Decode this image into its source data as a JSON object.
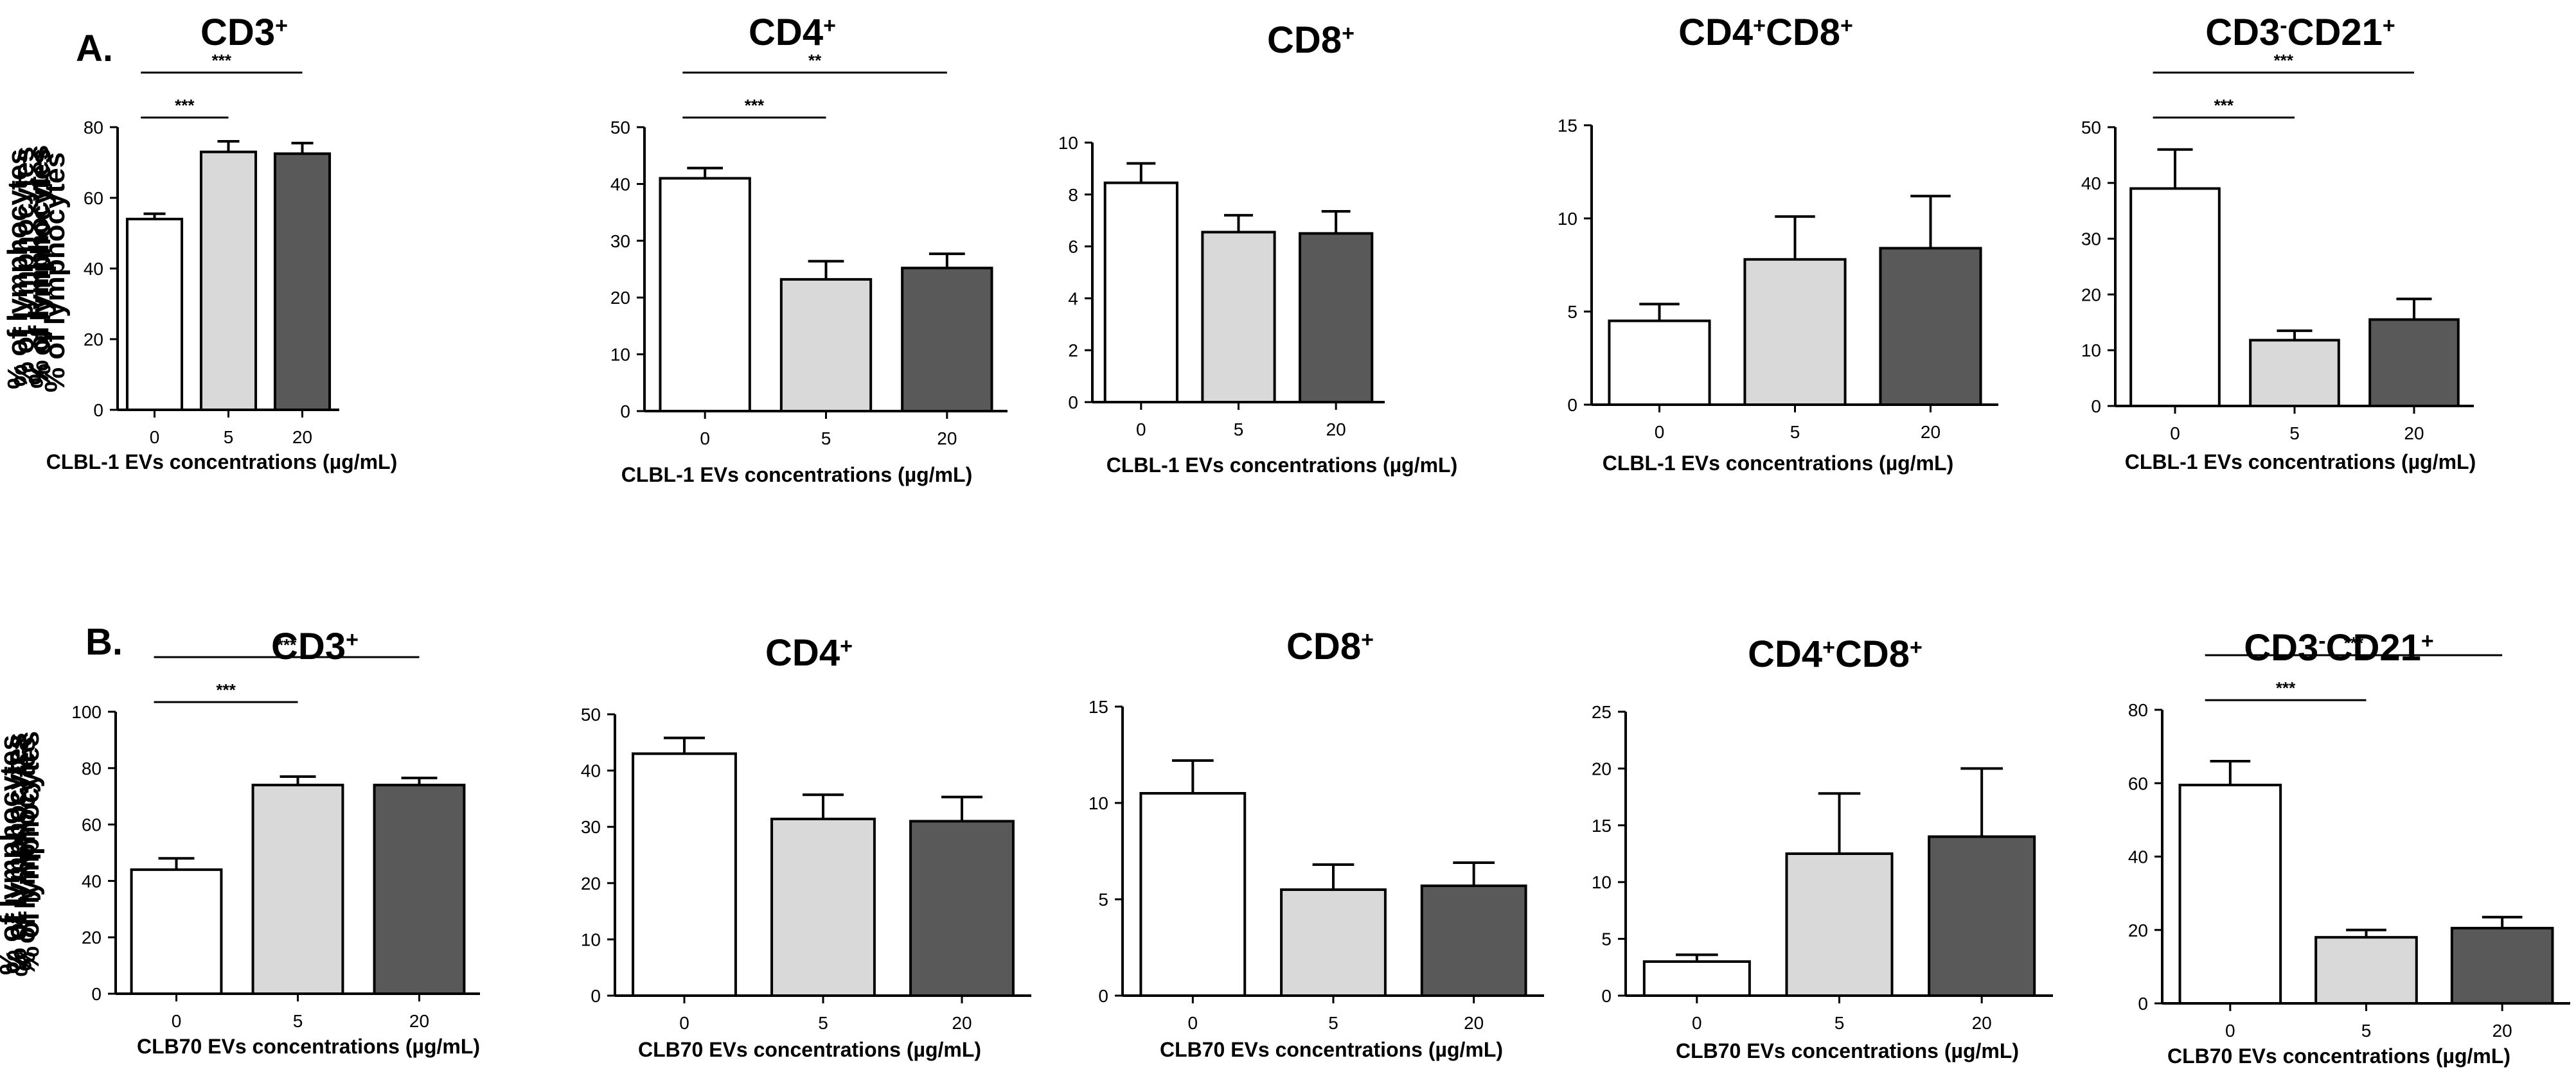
{
  "panels": {
    "A": {
      "label": "A.",
      "xlabel": "CLBL-1 EVs concentrations (µg/mL)"
    },
    "B": {
      "label": "B.",
      "xlabel": "CLB70 EVs concentrations (µg/mL)"
    }
  },
  "ylabel": "% of lymphocytes",
  "categories": [
    "0",
    "5",
    "20"
  ],
  "bar_colors": [
    "#ffffff",
    "#d9d9d9",
    "#595959"
  ],
  "chart_data": [
    {
      "type": "bar",
      "panel": "A",
      "title": "CD3⁺",
      "title_parts": [
        {
          "t": "CD3"
        },
        {
          "t": "+",
          "sup": true
        }
      ],
      "xlabel": "CLBL-1 EVs concentrations (µg/mL)",
      "ylabel": "% of lymphocytes",
      "categories": [
        "0",
        "5",
        "20"
      ],
      "values": [
        54,
        73,
        72.5
      ],
      "errors": [
        1.5,
        3,
        3
      ],
      "ylim": [
        0,
        80
      ],
      "yticks": [
        0,
        20,
        40,
        60,
        80
      ],
      "significance": [
        {
          "from": 0,
          "to": 1,
          "label": "***"
        },
        {
          "from": 0,
          "to": 2,
          "label": "***"
        }
      ]
    },
    {
      "type": "bar",
      "panel": "A",
      "title": "CD4⁺",
      "title_parts": [
        {
          "t": "CD4"
        },
        {
          "t": "+",
          "sup": true
        }
      ],
      "xlabel": "CLBL-1 EVs concentrations (µg/mL)",
      "ylabel": "% of lymphocytes",
      "categories": [
        "0",
        "5",
        "20"
      ],
      "values": [
        41,
        23.2,
        25.2
      ],
      "errors": [
        1.8,
        3.2,
        2.5
      ],
      "ylim": [
        0,
        50
      ],
      "yticks": [
        0,
        10,
        20,
        30,
        40,
        50
      ],
      "significance": [
        {
          "from": 0,
          "to": 1,
          "label": "***"
        },
        {
          "from": 0,
          "to": 2,
          "label": "**"
        }
      ]
    },
    {
      "type": "bar",
      "panel": "A",
      "title": "CD8⁺",
      "title_parts": [
        {
          "t": "CD8"
        },
        {
          "t": "+",
          "sup": true
        }
      ],
      "xlabel": "CLBL-1 EVs concentrations (µg/mL)",
      "ylabel": "% of lymphocytes",
      "categories": [
        "0",
        "5",
        "20"
      ],
      "values": [
        8.45,
        6.55,
        6.5
      ],
      "errors": [
        0.75,
        0.65,
        0.85
      ],
      "ylim": [
        0,
        10
      ],
      "yticks": [
        0,
        2,
        4,
        6,
        8,
        10
      ],
      "significance": []
    },
    {
      "type": "bar",
      "panel": "A",
      "title": "CD4⁺CD8⁺",
      "title_parts": [
        {
          "t": "CD4"
        },
        {
          "t": "+",
          "sup": true
        },
        {
          "t": "CD8"
        },
        {
          "t": "+",
          "sup": true
        }
      ],
      "xlabel": "CLBL-1 EVs concentrations (µg/mL)",
      "ylabel": "% of lymphocytes",
      "categories": [
        "0",
        "5",
        "20"
      ],
      "values": [
        4.5,
        7.8,
        8.4
      ],
      "errors": [
        0.9,
        2.3,
        2.8
      ],
      "ylim": [
        0,
        15
      ],
      "yticks": [
        0,
        5,
        10,
        15
      ],
      "significance": []
    },
    {
      "type": "bar",
      "panel": "A",
      "title": "CD3⁻CD21⁺",
      "title_parts": [
        {
          "t": "CD3"
        },
        {
          "t": "-",
          "sup": true
        },
        {
          "t": "CD21"
        },
        {
          "t": "+",
          "sup": true
        }
      ],
      "xlabel": "CLBL-1 EVs concentrations (µg/mL)",
      "ylabel": "% of lymphocytes",
      "categories": [
        "0",
        "5",
        "20"
      ],
      "values": [
        39,
        11.8,
        15.5
      ],
      "errors": [
        7,
        1.7,
        3.7
      ],
      "ylim": [
        0,
        50
      ],
      "yticks": [
        0,
        10,
        20,
        30,
        40,
        50
      ],
      "significance": [
        {
          "from": 0,
          "to": 1,
          "label": "***"
        },
        {
          "from": 0,
          "to": 2,
          "label": "***"
        }
      ]
    },
    {
      "type": "bar",
      "panel": "B",
      "title": "CD3⁺",
      "title_parts": [
        {
          "t": "CD3"
        },
        {
          "t": "+",
          "sup": true
        }
      ],
      "xlabel": "CLB70 EVs concentrations (µg/mL)",
      "ylabel": "% of lymphocytes",
      "categories": [
        "0",
        "5",
        "20"
      ],
      "values": [
        44,
        74,
        74
      ],
      "errors": [
        4,
        3,
        2.5
      ],
      "ylim": [
        0,
        100
      ],
      "yticks": [
        0,
        20,
        40,
        60,
        80,
        100
      ],
      "significance": [
        {
          "from": 0,
          "to": 1,
          "label": "***"
        },
        {
          "from": 0,
          "to": 2,
          "label": "***"
        }
      ]
    },
    {
      "type": "bar",
      "panel": "B",
      "title": "CD4⁺",
      "title_parts": [
        {
          "t": "CD4"
        },
        {
          "t": "+",
          "sup": true
        }
      ],
      "xlabel": "CLB70 EVs concentrations (µg/mL)",
      "ylabel": "% of lymphocytes",
      "categories": [
        "0",
        "5",
        "20"
      ],
      "values": [
        43,
        31.4,
        31
      ],
      "errors": [
        2.8,
        4.3,
        4.3
      ],
      "ylim": [
        0,
        50
      ],
      "yticks": [
        0,
        10,
        20,
        30,
        40,
        50
      ],
      "significance": []
    },
    {
      "type": "bar",
      "panel": "B",
      "title": "CD8⁺",
      "title_parts": [
        {
          "t": "CD8"
        },
        {
          "t": "+",
          "sup": true
        }
      ],
      "xlabel": "CLB70 EVs concentrations (µg/mL)",
      "ylabel": "% of lymphocytes",
      "categories": [
        "0",
        "5",
        "20"
      ],
      "values": [
        10.5,
        5.5,
        5.7
      ],
      "errors": [
        1.7,
        1.3,
        1.2
      ],
      "ylim": [
        0,
        15
      ],
      "yticks": [
        0,
        5,
        10,
        15
      ],
      "significance": []
    },
    {
      "type": "bar",
      "panel": "B",
      "title": "CD4⁺CD8⁺",
      "title_parts": [
        {
          "t": "CD4"
        },
        {
          "t": "+",
          "sup": true
        },
        {
          "t": "CD8"
        },
        {
          "t": "+",
          "sup": true
        }
      ],
      "xlabel": "CLB70 EVs concentrations (µg/mL)",
      "ylabel": "% of lymphocytes",
      "categories": [
        "0",
        "5",
        "20"
      ],
      "values": [
        3,
        12.5,
        14
      ],
      "errors": [
        0.6,
        5.3,
        6
      ],
      "ylim": [
        0,
        25
      ],
      "yticks": [
        0,
        5,
        10,
        15,
        20,
        25
      ],
      "significance": []
    },
    {
      "type": "bar",
      "panel": "B",
      "title": "CD3⁻CD21⁺",
      "title_parts": [
        {
          "t": "CD3"
        },
        {
          "t": "-",
          "sup": true
        },
        {
          "t": "CD21"
        },
        {
          "t": "+",
          "sup": true
        }
      ],
      "xlabel": "CLB70 EVs concentrations (µg/mL)",
      "ylabel": "% of lymphocytes",
      "categories": [
        "0",
        "5",
        "20"
      ],
      "values": [
        59.5,
        18,
        20.5
      ],
      "errors": [
        6.5,
        2,
        3
      ],
      "ylim": [
        0,
        80
      ],
      "yticks": [
        0,
        20,
        40,
        60,
        80
      ],
      "significance": [
        {
          "from": 0,
          "to": 1,
          "label": "***"
        },
        {
          "from": 0,
          "to": 2,
          "label": "***"
        }
      ]
    }
  ]
}
